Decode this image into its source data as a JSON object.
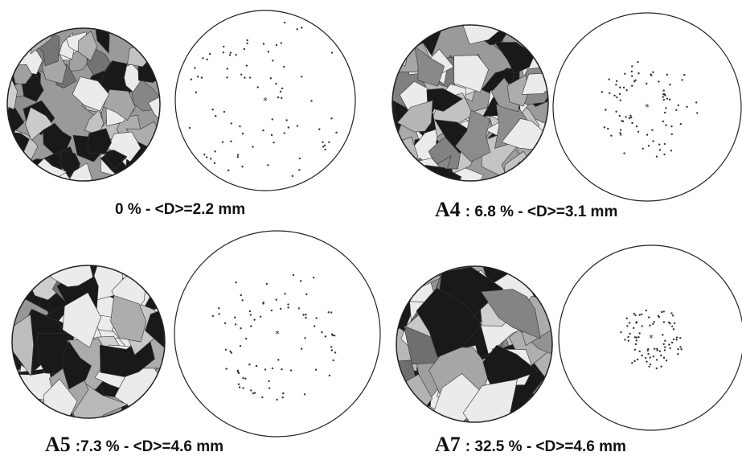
{
  "panels": [
    {
      "caption": "0 % - <D>=2.2 mm"
    },
    {
      "label": "A4",
      "caption": ": 6.8 % - <D>=3.1 mm"
    },
    {
      "label": "A5",
      "caption": ":7.3 % - <D>=4.6 mm"
    },
    {
      "label": "A7",
      "caption": ": 32.5 % - <D>=4.6 mm"
    }
  ]
}
